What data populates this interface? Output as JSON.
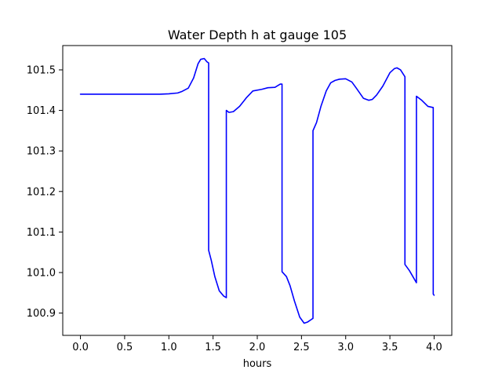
{
  "chart_data": {
    "type": "line",
    "title": "Water Depth h at gauge 105",
    "xlabel": "hours",
    "ylabel": "",
    "xlim": [
      -0.2,
      4.2
    ],
    "ylim": [
      100.845,
      101.56
    ],
    "grid": false,
    "xticks": [
      "0.0",
      "0.5",
      "1.0",
      "1.5",
      "2.0",
      "2.5",
      "3.0",
      "3.5",
      "4.0"
    ],
    "yticks": [
      "100.9",
      "101.0",
      "101.1",
      "101.2",
      "101.3",
      "101.4",
      "101.5"
    ],
    "series": [
      {
        "color": "#0000ff",
        "x": [
          0.0,
          0.5,
          0.9,
          1.0,
          1.1,
          1.15,
          1.22,
          1.28,
          1.33,
          1.36,
          1.4,
          1.43,
          1.45,
          1.45,
          1.48,
          1.52,
          1.57,
          1.62,
          1.65,
          1.65,
          1.68,
          1.73,
          1.8,
          1.88,
          1.95,
          2.05,
          2.12,
          2.2,
          2.26,
          2.28,
          2.28,
          2.33,
          2.37,
          2.42,
          2.48,
          2.53,
          2.57,
          2.61,
          2.63,
          2.63,
          2.67,
          2.72,
          2.78,
          2.83,
          2.88,
          2.93,
          3.0,
          3.07,
          3.12,
          3.2,
          3.26,
          3.3,
          3.35,
          3.42,
          3.5,
          3.55,
          3.58,
          3.62,
          3.67,
          3.67,
          3.72,
          3.8,
          3.8,
          3.86,
          3.93,
          3.99,
          3.99,
          4.0
        ],
        "y": [
          101.44,
          101.44,
          101.44,
          101.441,
          101.443,
          101.447,
          101.455,
          101.48,
          101.515,
          101.526,
          101.528,
          101.52,
          101.517,
          101.055,
          101.03,
          100.99,
          100.955,
          100.942,
          100.938,
          101.4,
          101.395,
          101.397,
          101.41,
          101.432,
          101.448,
          101.452,
          101.456,
          101.457,
          101.465,
          101.465,
          101.002,
          100.99,
          100.968,
          100.93,
          100.89,
          100.875,
          100.878,
          100.884,
          100.887,
          101.35,
          101.37,
          101.41,
          101.448,
          101.468,
          101.474,
          101.477,
          101.478,
          101.47,
          101.455,
          101.43,
          101.425,
          101.427,
          101.438,
          101.46,
          101.493,
          101.503,
          101.505,
          101.5,
          101.483,
          101.02,
          101.005,
          100.975,
          101.435,
          101.425,
          101.41,
          101.407,
          100.947,
          100.944
        ]
      }
    ]
  }
}
